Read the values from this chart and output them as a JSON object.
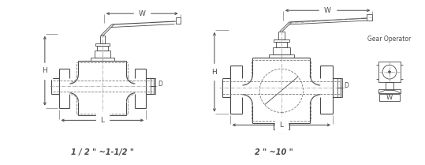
{
  "bg_color": "#ffffff",
  "line_color": "#4a4a4a",
  "dash_color": "#7a7a7a",
  "title1": "1 / 2 \" ~1-1/2 \"",
  "title2": "2 \" ~10 \"",
  "gear_label": "Gear Operator"
}
